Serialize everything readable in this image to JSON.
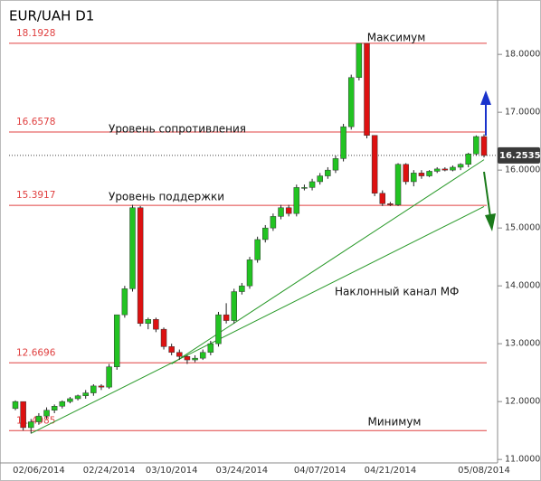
{
  "chart_data": {
    "type": "candlestick",
    "title": "EUR/UAH D1",
    "categories": [
      null,
      null,
      null,
      "02/06/2014",
      null,
      null,
      null,
      null,
      null,
      null,
      null,
      null,
      "02/24/2014",
      null,
      null,
      null,
      null,
      null,
      null,
      null,
      "03/10/2014",
      null,
      null,
      null,
      null,
      null,
      null,
      null,
      null,
      "03/24/2014",
      null,
      null,
      null,
      null,
      null,
      null,
      null,
      null,
      null,
      "04/07/2014",
      null,
      null,
      null,
      null,
      null,
      null,
      null,
      null,
      "04/21/2014",
      null,
      null,
      null,
      null,
      null,
      null,
      null,
      null,
      null,
      null,
      null,
      "05/08/2014"
    ],
    "open": [
      11.88,
      12.0,
      11.55,
      11.65,
      11.75,
      11.85,
      11.92,
      12.0,
      12.05,
      12.1,
      12.15,
      12.27,
      12.25,
      12.6,
      13.5,
      13.95,
      15.35,
      13.35,
      13.42,
      13.25,
      12.95,
      12.85,
      12.78,
      12.72,
      12.75,
      12.85,
      13.0,
      13.5,
      13.4,
      13.9,
      14.0,
      14.45,
      14.8,
      15.0,
      15.2,
      15.35,
      15.25,
      15.7,
      15.7,
      15.8,
      15.9,
      16.0,
      16.2,
      16.75,
      17.6,
      18.19,
      16.6,
      15.6,
      15.42,
      15.4,
      16.1,
      15.8,
      15.95,
      15.9,
      15.98,
      16.02,
      16.0,
      16.05,
      16.1,
      16.28,
      16.58
    ],
    "high": [
      12.02,
      12.0,
      11.7,
      11.8,
      11.9,
      11.95,
      12.02,
      12.08,
      12.12,
      12.2,
      12.3,
      12.3,
      12.65,
      13.5,
      14.0,
      15.4,
      15.38,
      13.45,
      13.45,
      13.28,
      13.0,
      12.9,
      12.8,
      12.8,
      12.9,
      13.05,
      13.55,
      13.7,
      13.95,
      14.05,
      14.5,
      14.85,
      15.05,
      15.25,
      15.4,
      15.4,
      15.75,
      15.75,
      15.85,
      15.95,
      16.05,
      16.25,
      16.8,
      17.65,
      18.19,
      18.19,
      16.6,
      15.65,
      15.45,
      16.12,
      16.12,
      16.0,
      16.0,
      16.0,
      16.05,
      16.05,
      16.08,
      16.12,
      16.3,
      16.6,
      16.62
    ],
    "low": [
      11.85,
      11.5,
      11.45,
      11.6,
      11.7,
      11.8,
      11.88,
      11.97,
      12.02,
      12.05,
      12.1,
      12.2,
      12.22,
      12.55,
      13.45,
      13.9,
      13.3,
      13.25,
      13.2,
      12.9,
      12.8,
      12.72,
      12.65,
      12.68,
      12.72,
      12.8,
      12.95,
      13.35,
      13.35,
      13.85,
      13.95,
      14.4,
      14.75,
      14.95,
      15.15,
      15.2,
      15.2,
      15.65,
      15.65,
      15.75,
      15.85,
      15.95,
      16.15,
      16.7,
      17.55,
      16.55,
      15.55,
      15.38,
      15.38,
      15.38,
      15.75,
      15.72,
      15.85,
      15.88,
      15.95,
      15.98,
      15.98,
      16.0,
      16.05,
      16.25,
      16.22
    ],
    "close": [
      12.0,
      11.55,
      11.65,
      11.75,
      11.85,
      11.92,
      12.0,
      12.05,
      12.1,
      12.15,
      12.27,
      12.25,
      12.6,
      13.5,
      13.95,
      15.35,
      13.35,
      13.42,
      13.25,
      12.95,
      12.85,
      12.78,
      12.72,
      12.75,
      12.85,
      13.0,
      13.5,
      13.4,
      13.9,
      14.0,
      14.45,
      14.8,
      15.0,
      15.2,
      15.35,
      15.25,
      15.7,
      15.7,
      15.8,
      15.9,
      16.0,
      16.2,
      16.75,
      17.6,
      18.19,
      16.6,
      15.6,
      15.42,
      15.4,
      16.1,
      15.8,
      15.95,
      15.9,
      15.98,
      16.02,
      16.0,
      16.05,
      16.1,
      16.28,
      16.58,
      16.2535
    ],
    "up_color": "#22c322",
    "down_color": "#dd1111",
    "ylim": [
      10.94,
      18.94
    ],
    "yticks": [
      {
        "value": 11,
        "label": "11.0000"
      },
      {
        "value": 12,
        "label": "12.0000"
      },
      {
        "value": 13,
        "label": "13.0000"
      },
      {
        "value": 14,
        "label": "14.0000"
      },
      {
        "value": 15,
        "label": "15.0000"
      },
      {
        "value": 16,
        "label": "16.0000"
      },
      {
        "value": 17,
        "label": "17.0000"
      },
      {
        "value": 18,
        "label": "18.0000"
      }
    ],
    "levels": [
      18.1928,
      16.6578,
      15.3917,
      12.6696,
      11.4985
    ],
    "level_color": "#e04040",
    "trend_lines": [
      {
        "x": [
          2,
          60
        ],
        "y": [
          11.45,
          15.37
        ]
      },
      {
        "x": [
          20,
          60
        ],
        "y": [
          12.65,
          16.18
        ]
      }
    ],
    "trend_color": "#2a9a2a",
    "annotations": [
      "Максимум",
      "Уровень сопротивления",
      "Уровень поддержки",
      "Наклонный канал МФ",
      "Минимум"
    ]
  }
}
